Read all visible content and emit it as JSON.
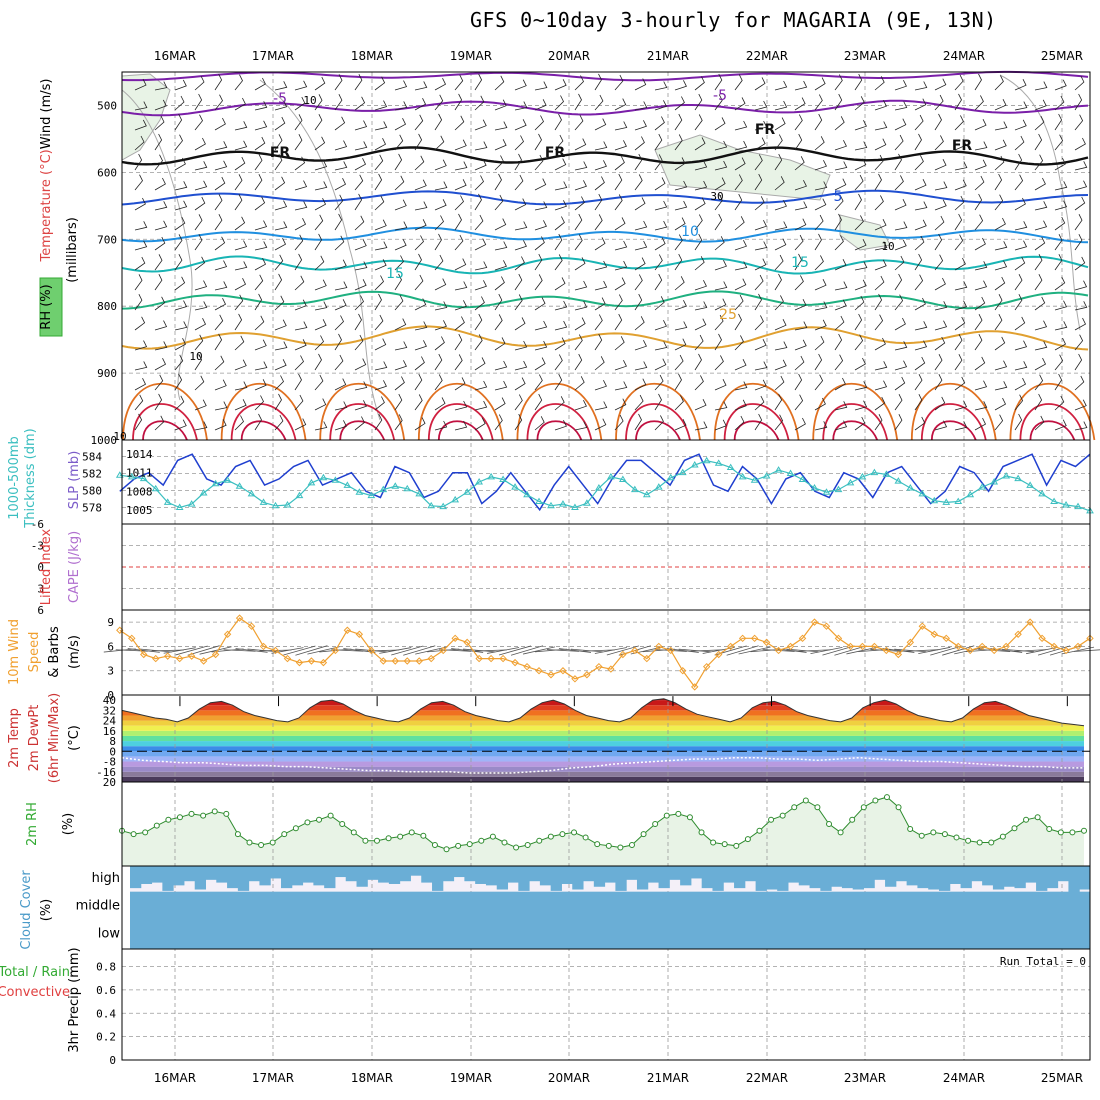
{
  "title": "GFS 0~10day 3-hourly for MAGARIA (9E, 13N)",
  "colors": {
    "grid": "#9a9a9a",
    "slp": "#1f3fcf",
    "thickness": "#3bbfc0",
    "wind10": "#f0a030",
    "rh": "#2e8b2e",
    "rh_fill": "#e8f3e6",
    "cloud": "#6aaed6",
    "cloud_bg": "#f4f0f8",
    "lifted": "#e04040",
    "t_m5": "#7a1fa8",
    "t_fr": "#111111",
    "t_5": "#1f4fd0",
    "t_10": "#1f8fe0",
    "t_15": "#18b4b4",
    "t_20": "#1fb080",
    "t_25": "#e0a030",
    "t_30": "#e07020",
    "t_35": "#d02040"
  },
  "chart_data": {
    "type": "meteogram",
    "dates": [
      "16MAR",
      "17MAR",
      "18MAR",
      "19MAR",
      "20MAR",
      "21MAR",
      "22MAR",
      "23MAR",
      "24MAR",
      "25MAR"
    ],
    "panels": [
      {
        "id": "upper-air",
        "ylabel_lines": [
          "Wind (m/s)",
          "Temperature (°C)",
          "RH (%)",
          "(millibars)"
        ],
        "yticks": [
          "500",
          "600",
          "700",
          "800",
          "900",
          "1000"
        ],
        "ylim": [
          450,
          1000
        ],
        "contour_labels": [
          {
            "text": "-5",
            "level": -5,
            "pressure": 500
          },
          {
            "text": "-5",
            "level": -5,
            "pressure": 500
          },
          {
            "text": "FR",
            "level": 0,
            "pressure": 585
          },
          {
            "text": "FR",
            "level": 0,
            "pressure": 585
          },
          {
            "text": "FR",
            "level": 0,
            "pressure": 555
          },
          {
            "text": "FR",
            "level": 0,
            "pressure": 560
          },
          {
            "text": "5",
            "level": 5,
            "pressure": 640
          },
          {
            "text": "10",
            "level": 10,
            "pressure": 690
          },
          {
            "text": "15",
            "level": 15,
            "pressure": 755
          },
          {
            "text": "15",
            "level": 15,
            "pressure": 740
          },
          {
            "text": "25",
            "level": 25,
            "pressure": 815
          }
        ],
        "rh_contour_labels": [
          "10",
          "10",
          "10",
          "30",
          "10"
        ]
      },
      {
        "id": "slp-thickness",
        "ylabel_left_lines": [
          "1000-500mb",
          "Thickness (dm)"
        ],
        "ylabel_right": "SLP (mb)",
        "yticks_left": [
          "584",
          "582",
          "580",
          "578"
        ],
        "yticks_right": [
          "1014",
          "1011",
          "1008",
          "1005"
        ],
        "slp": [
          1008,
          1010,
          1011,
          1009,
          1013,
          1014,
          1010,
          1009,
          1012,
          1013,
          1009,
          1010,
          1012,
          1013,
          1009,
          1010,
          1011,
          1008,
          1007,
          1012,
          1011,
          1007,
          1008,
          1011,
          1011,
          1006,
          1008,
          1011,
          1008,
          1005,
          1009,
          1012,
          1009,
          1006,
          1010,
          1013,
          1013,
          1011,
          1009,
          1013,
          1014,
          1009,
          1008,
          1012,
          1010,
          1006,
          1010,
          1011,
          1008,
          1007,
          1011,
          1010,
          1007,
          1011,
          1012,
          1009,
          1006,
          1008,
          1012,
          1011,
          1008,
          1012,
          1013,
          1014,
          1009,
          1013,
          1012,
          1014
        ],
        "thickness": [
          581.8,
          581.6,
          581.4,
          580.2,
          578.6,
          578.0,
          578.4,
          579.7,
          580.8,
          581.2,
          580.5,
          579.6,
          578.6,
          578.2,
          578.3,
          579.4,
          580.9,
          581.5,
          581.2,
          580.6,
          579.8,
          579.4,
          580.1,
          580.5,
          580.2,
          579.6,
          578.2,
          578.1,
          578.9,
          579.8,
          581.0,
          581.6,
          581.3,
          580.4,
          579.5,
          578.7,
          578.2,
          578.4,
          578.0,
          578.5,
          580.3,
          581.6,
          581.3,
          580.1,
          579.5,
          580.4,
          581.5,
          582.1,
          583.0,
          583.5,
          583.2,
          582.7,
          581.6,
          581.2,
          581.7,
          582.4,
          582.0,
          581.3,
          580.3,
          579.8,
          580.1,
          580.9,
          581.6,
          582.1,
          581.9,
          581.1,
          580.3,
          579.6,
          578.8,
          578.6,
          578.7,
          579.5,
          580.4,
          581.0,
          581.7,
          581.4,
          580.6,
          579.6,
          578.7,
          578.3,
          578.1,
          577.6
        ]
      },
      {
        "id": "stability",
        "ylabel_left": "Lifted Index",
        "ylabel_right": "CAPE (J/kg)",
        "yticks": [
          "-6",
          "-3",
          "0",
          "3",
          "6"
        ],
        "lifted_index_zero_line": true
      },
      {
        "id": "wind10",
        "ylabel_lines": [
          "10m Wind",
          "Speed",
          "& Barbs",
          "(m/s)"
        ],
        "yticks": [
          "9",
          "6",
          "3"
        ],
        "ylim": [
          0,
          10.5
        ],
        "speed": [
          8.0,
          7.0,
          5.0,
          4.5,
          4.8,
          4.5,
          4.8,
          4.2,
          5.0,
          7.5,
          9.5,
          8.5,
          6.0,
          5.5,
          4.5,
          4.0,
          4.2,
          4.0,
          5.5,
          8.0,
          7.5,
          5.5,
          4.2,
          4.2,
          4.2,
          4.2,
          4.5,
          5.5,
          7.0,
          6.5,
          4.5,
          4.5,
          4.5,
          4.0,
          3.5,
          3.0,
          2.5,
          3.0,
          2.0,
          2.5,
          3.5,
          3.2,
          5.0,
          5.5,
          4.5,
          6.0,
          5.5,
          3.0,
          1.0,
          3.5,
          5.0,
          6.0,
          7.0,
          7.0,
          6.5,
          5.5,
          6.0,
          7.0,
          9.0,
          8.5,
          7.0,
          6.0,
          6.0,
          6.0,
          5.5,
          5.0,
          6.5,
          8.5,
          7.5,
          7.0,
          6.0,
          5.5,
          6.0,
          5.5,
          6.0,
          7.5,
          9.0,
          7.0,
          6.0,
          5.5,
          6.0,
          7.0
        ]
      },
      {
        "id": "temp2m",
        "ylabel_lines": [
          "2m Temp",
          "2m DewPt",
          "(6hr Min/Max)",
          "(°C)"
        ],
        "yticks": [
          "40",
          "32",
          "24",
          "16",
          "8",
          "0",
          "-8",
          "-16"
        ],
        "ylim": [
          -24,
          44
        ],
        "temp": [
          32,
          30,
          28,
          26,
          25,
          23,
          26,
          33,
          38,
          39,
          36,
          31,
          28,
          26,
          24,
          23,
          26,
          34,
          39,
          40,
          37,
          32,
          28,
          26,
          24,
          23,
          26,
          33,
          38,
          39,
          36,
          31,
          28,
          26,
          24,
          23,
          26,
          33,
          38,
          40,
          37,
          32,
          28,
          26,
          24,
          23,
          26,
          34,
          40,
          41,
          38,
          33,
          29,
          27,
          25,
          23,
          26,
          34,
          38,
          39,
          36,
          31,
          28,
          26,
          24,
          23,
          26,
          34,
          38,
          40,
          37,
          32,
          28,
          26,
          24,
          23,
          26,
          33,
          38,
          39,
          36,
          32,
          28,
          26,
          24,
          22,
          21,
          20
        ],
        "dewpoint": [
          -5,
          -7,
          -8,
          -9,
          -9,
          -10,
          -11,
          -11,
          -12,
          -12,
          -13,
          -14,
          -15,
          -15,
          -16,
          -16,
          -16,
          -17,
          -17,
          -17,
          -16,
          -15,
          -13,
          -12,
          -10,
          -9,
          -8,
          -7,
          -6,
          -6,
          -5,
          -5,
          -6,
          -6,
          -7,
          -6,
          -5,
          -6,
          -7,
          -8,
          -8,
          -9,
          -10,
          -11,
          -12,
          -12,
          -13,
          -13
        ]
      },
      {
        "id": "rh2m",
        "ylabel": "2m RH",
        "ylabel_unit": "(%)",
        "ylim": [
          0,
          100
        ],
        "rh": [
          42,
          38,
          40,
          48,
          55,
          58,
          62,
          60,
          65,
          62,
          38,
          28,
          25,
          28,
          38,
          45,
          52,
          55,
          60,
          50,
          40,
          30,
          30,
          33,
          35,
          40,
          36,
          25,
          20,
          24,
          26,
          30,
          35,
          28,
          22,
          25,
          30,
          35,
          38,
          40,
          34,
          26,
          24,
          22,
          25,
          38,
          50,
          60,
          62,
          58,
          40,
          28,
          26,
          24,
          32,
          42,
          55,
          60,
          70,
          78,
          70,
          50,
          40,
          55,
          70,
          78,
          82,
          70,
          44,
          36,
          40,
          38,
          34,
          30,
          28,
          28,
          35,
          45,
          55,
          58,
          44,
          40,
          40,
          42
        ]
      },
      {
        "id": "cloud",
        "ylabel": "Cloud Cover",
        "ylabel_unit": "(%)",
        "levels": [
          "high",
          "middle",
          "low"
        ],
        "high": [
          80,
          65,
          60,
          90,
          70,
          55,
          85,
          50,
          60,
          80,
          90,
          55,
          70,
          45,
          80,
          70,
          60,
          70,
          80,
          40,
          55,
          75,
          50,
          60,
          65,
          55,
          35,
          60,
          90,
          55,
          40,
          55,
          65,
          70,
          85,
          60,
          90,
          55,
          70,
          90,
          65,
          85,
          55,
          75,
          60,
          90,
          50,
          85,
          60,
          80,
          50,
          70,
          45,
          80,
          90,
          60,
          80,
          55,
          90,
          85,
          90,
          60,
          70,
          80,
          90,
          75,
          80,
          85,
          80,
          50,
          75,
          55,
          70,
          80,
          85,
          90,
          65,
          80,
          55,
          70,
          85,
          75,
          80,
          60,
          90,
          80,
          55,
          95,
          85
        ]
      },
      {
        "id": "precip",
        "ylabel_lines": [
          "3hr Precip (mm)"
        ],
        "legend_lines": [
          "Total / Rain",
          "Convective"
        ],
        "yticks": [
          "0.8",
          "0.6",
          "0.4",
          "0.2",
          "0"
        ],
        "ylim": [
          0,
          0.95
        ],
        "run_total_label": "Run Total = 0"
      }
    ]
  }
}
